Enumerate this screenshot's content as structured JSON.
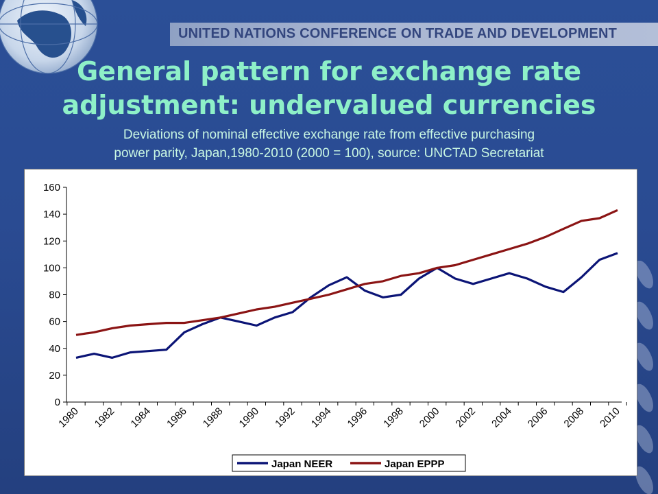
{
  "header": {
    "organization": "UNITED NATIONS CONFERENCE ON TRADE AND DEVELOPMENT",
    "title_line1": "General pattern for exchange rate",
    "title_line2": "adjustment: undervalued currencies",
    "subtitle_line1": "Deviations of nominal effective exchange rate from effective purchasing",
    "subtitle_line2": "power parity, Japan,1980-2010 (2000 = 100), source: UNCTAD Secretariat"
  },
  "decor": {
    "logo_icon": "un-globe-icon",
    "laurel_icon": "olive-branch-icon"
  },
  "colors": {
    "neer": "#0b1476",
    "eppp": "#8b1414",
    "title": "#8ef0c8"
  },
  "chart_data": {
    "type": "line",
    "x": [
      1980,
      1981,
      1982,
      1983,
      1984,
      1985,
      1986,
      1987,
      1988,
      1989,
      1990,
      1991,
      1992,
      1993,
      1994,
      1995,
      1996,
      1997,
      1998,
      1999,
      2000,
      2001,
      2002,
      2003,
      2004,
      2005,
      2006,
      2007,
      2008,
      2009,
      2010
    ],
    "x_ticks": [
      "1980",
      "1982",
      "1984",
      "1986",
      "1988",
      "1990",
      "1992",
      "1994",
      "1996",
      "1998",
      "2000",
      "2002",
      "2004",
      "2006",
      "2008",
      "2010"
    ],
    "y_ticks": [
      "0",
      "20",
      "40",
      "60",
      "80",
      "100",
      "120",
      "140",
      "160"
    ],
    "ylim": [
      0,
      160
    ],
    "grid": false,
    "legend_position": "bottom",
    "series": [
      {
        "name": "Japan NEER",
        "values": [
          33,
          36,
          33,
          37,
          38,
          39,
          52,
          58,
          63,
          60,
          57,
          63,
          67,
          78,
          87,
          93,
          83,
          78,
          80,
          92,
          100,
          92,
          88,
          92,
          96,
          92,
          86,
          82,
          93,
          106,
          111
        ]
      },
      {
        "name": "Japan EPPP",
        "values": [
          50,
          52,
          55,
          57,
          58,
          59,
          59,
          61,
          63,
          66,
          69,
          71,
          74,
          77,
          80,
          84,
          88,
          90,
          94,
          96,
          100,
          102,
          106,
          110,
          114,
          118,
          123,
          129,
          135,
          137,
          143
        ]
      }
    ]
  }
}
